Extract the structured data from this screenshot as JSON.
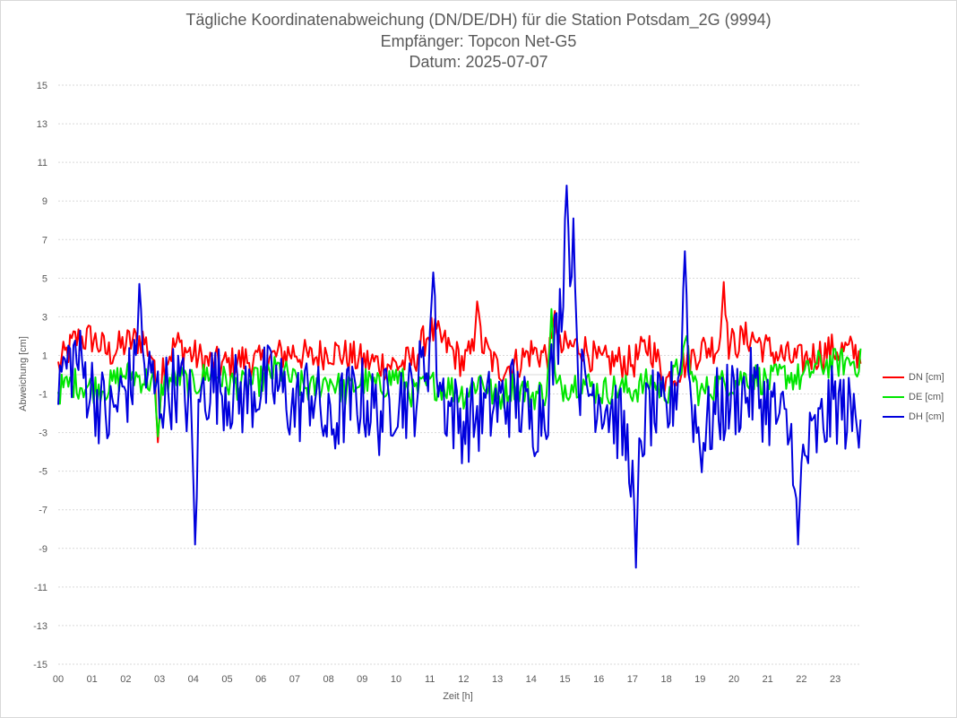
{
  "chart_data": {
    "type": "line",
    "title": "Tägliche Koordinatenabweichung (DN/DE/DH) für die Station Potsdam_2G (9994)",
    "subtitle_1": "Empfänger: Topcon Net-G5",
    "subtitle_2": "Datum: 2025-07-07",
    "xlabel": "Zeit [h]",
    "ylabel": "Abweichung [cm]",
    "xlim": [
      0,
      23.75
    ],
    "ylim": [
      -15,
      15
    ],
    "x_ticks": [
      "00",
      "01",
      "02",
      "03",
      "04",
      "05",
      "06",
      "07",
      "08",
      "09",
      "10",
      "11",
      "12",
      "13",
      "14",
      "15",
      "16",
      "17",
      "18",
      "19",
      "20",
      "21",
      "22",
      "23"
    ],
    "y_ticks": [
      15,
      13,
      11,
      9,
      7,
      5,
      3,
      1,
      -1,
      -3,
      -5,
      -7,
      -9,
      -11,
      -13,
      -15
    ],
    "grid": "horizontal dotted",
    "legend_position": "right",
    "x_hours": [
      0,
      0.5,
      1,
      1.5,
      2,
      2.5,
      3,
      3.5,
      4,
      4.5,
      5,
      5.5,
      6,
      6.5,
      7,
      7.5,
      8,
      8.5,
      9,
      9.5,
      10,
      10.5,
      11,
      11.5,
      12,
      12.5,
      13,
      13.5,
      14,
      14.5,
      15,
      15.5,
      16,
      16.5,
      17,
      17.5,
      18,
      18.5,
      19,
      19.5,
      20,
      20.5,
      21,
      21.5,
      22,
      22.5,
      23,
      23.5,
      23.75
    ],
    "series": [
      {
        "name": "DN [cm]",
        "color": "#ff0000",
        "values": [
          0.4,
          1.8,
          1.9,
          1.1,
          1.6,
          1.9,
          0.3,
          1.6,
          1.0,
          0.6,
          0.5,
          0.8,
          0.6,
          1.0,
          1.2,
          0.8,
          1.3,
          1.0,
          0.7,
          0.6,
          0.5,
          0.7,
          2.3,
          1.5,
          0.6,
          1.7,
          0.3,
          0.5,
          1.2,
          1.0,
          1.4,
          1.5,
          0.6,
          0.7,
          0.6,
          1.6,
          -0.3,
          0.5,
          1.3,
          1.5,
          1.6,
          2.0,
          1.3,
          0.9,
          0.7,
          1.1,
          1.3,
          1.2,
          1.0
        ]
      },
      {
        "name": "DE [cm]",
        "color": "#00e600",
        "values": [
          -0.8,
          -0.4,
          -0.7,
          -0.6,
          0.1,
          -0.2,
          -0.5,
          -0.1,
          -0.6,
          0.2,
          -0.4,
          -0.6,
          -0.3,
          0.3,
          -0.4,
          -0.8,
          -0.2,
          -0.9,
          -0.3,
          -0.7,
          0.0,
          -1.0,
          -0.5,
          -0.6,
          -1.0,
          -0.2,
          -1.3,
          -0.5,
          -1.1,
          -0.8,
          -0.6,
          -0.3,
          -0.9,
          -0.7,
          -0.8,
          -0.4,
          -0.9,
          0.8,
          -1.0,
          -0.5,
          -0.4,
          0.0,
          -0.4,
          0.0,
          -0.2,
          0.5,
          0.6,
          0.7,
          0.6
        ]
      },
      {
        "name": "DH [cm]",
        "color": "#0000dd",
        "values": [
          -0.2,
          1.0,
          -0.8,
          -2.3,
          -0.7,
          0.4,
          -1.2,
          -0.4,
          -1.8,
          -0.3,
          -0.8,
          -1.2,
          -0.5,
          -0.6,
          -1.8,
          -0.7,
          -3.0,
          -1.5,
          -1.2,
          -2.1,
          -1.0,
          -1.3,
          1.4,
          -1.6,
          -2.5,
          -2.0,
          -1.6,
          -1.0,
          -2.5,
          -1.1,
          5.0,
          -0.6,
          -0.9,
          -2.1,
          -4.5,
          -1.8,
          -2.3,
          1.0,
          -3.5,
          -1.8,
          -1.2,
          -0.8,
          -1.5,
          -2.7,
          -4.5,
          -3.0,
          -1.4,
          -2.3,
          -1.5
        ]
      }
    ],
    "peaks": {
      "DH [cm]": [
        [
          2.4,
          4.7
        ],
        [
          4.05,
          -8.8
        ],
        [
          11.1,
          5.3
        ],
        [
          15.05,
          9.8
        ],
        [
          15.25,
          8.1
        ],
        [
          17.1,
          -10.0
        ],
        [
          18.55,
          6.4
        ],
        [
          21.9,
          -8.8
        ]
      ],
      "DN [cm]": [
        [
          2.95,
          -3.5
        ],
        [
          12.4,
          3.8
        ],
        [
          14.7,
          3.3
        ],
        [
          19.7,
          4.8
        ]
      ],
      "DE [cm]": [
        [
          2.95,
          -3.2
        ],
        [
          14.6,
          3.4
        ],
        [
          18.6,
          2.0
        ]
      ]
    }
  },
  "legend": {
    "dn": "DN [cm]",
    "de": "DE [cm]",
    "dh": "DH [cm]"
  }
}
